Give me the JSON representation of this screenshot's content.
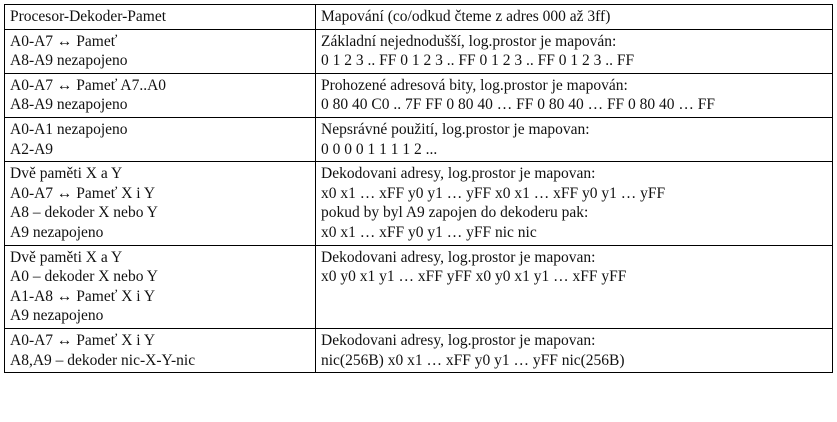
{
  "header": {
    "left": "Procesor-Dekoder-Pamet",
    "right": "Mapování (co/odkud čteme z adres 000 až 3ff)"
  },
  "rows": [
    {
      "left": [
        "A0-A7 ↔ Pameť",
        "A8-A9 nezapojeno"
      ],
      "right": [
        "Základní nejednodušší, log.prostor je mapován:",
        "0 1 2 3 .. FF 0 1 2 3 .. FF 0 1 2 3 .. FF 0 1 2 3 .. FF"
      ]
    },
    {
      "left": [
        "A0-A7 ↔ Pameť A7..A0",
        "A8-A9 nezapojeno"
      ],
      "right": [
        "Prohozené adresová bity, log.prostor je mapován:",
        "0 80 40 C0 .. 7F FF   0 80 40 … FF  0 80 40 … FF  0 80 40 … FF"
      ]
    },
    {
      "left": [
        "A0-A1 nezapojeno",
        "A2-A9"
      ],
      "right": [
        "Nepsrávné použití, log.prostor je mapovan:",
        "0 0 0 0 1 1 1 1 2 ..."
      ]
    },
    {
      "left": [
        "Dvě paměti X a Y",
        "A0-A7  ↔ Pameť X i Y",
        "A8 – dekoder X nebo Y",
        "A9 nezapojeno"
      ],
      "right": [
        "Dekodovani adresy, log.prostor je mapovan:",
        "x0 x1 … xFF y0 y1 … yFF  x0 x1 … xFF y0 y1 … yFF",
        "pokud by byl A9 zapojen do dekoderu pak:",
        "x0 x1 … xFF y0 y1 … yFF  nic  nic"
      ]
    },
    {
      "left": [
        "Dvě paměti X a Y",
        "A0 – dekoder X nebo Y",
        "A1-A8  ↔ Pameť X i Y",
        "A9 nezapojeno"
      ],
      "right": [
        "Dekodovani adresy, log.prostor je mapovan:",
        "x0 y0 x1 y1 … xFF yFF x0 y0 x1 y1 … xFF yFF"
      ]
    },
    {
      "left": [
        "A0-A7  ↔ Pameť X i Y",
        "A8,A9 – dekoder nic-X-Y-nic"
      ],
      "right": [
        "Dekodovani adresy, log.prostor je mapovan:",
        "nic(256B) x0 x1 … xFF y0 y1 … yFF nic(256B)"
      ]
    }
  ]
}
